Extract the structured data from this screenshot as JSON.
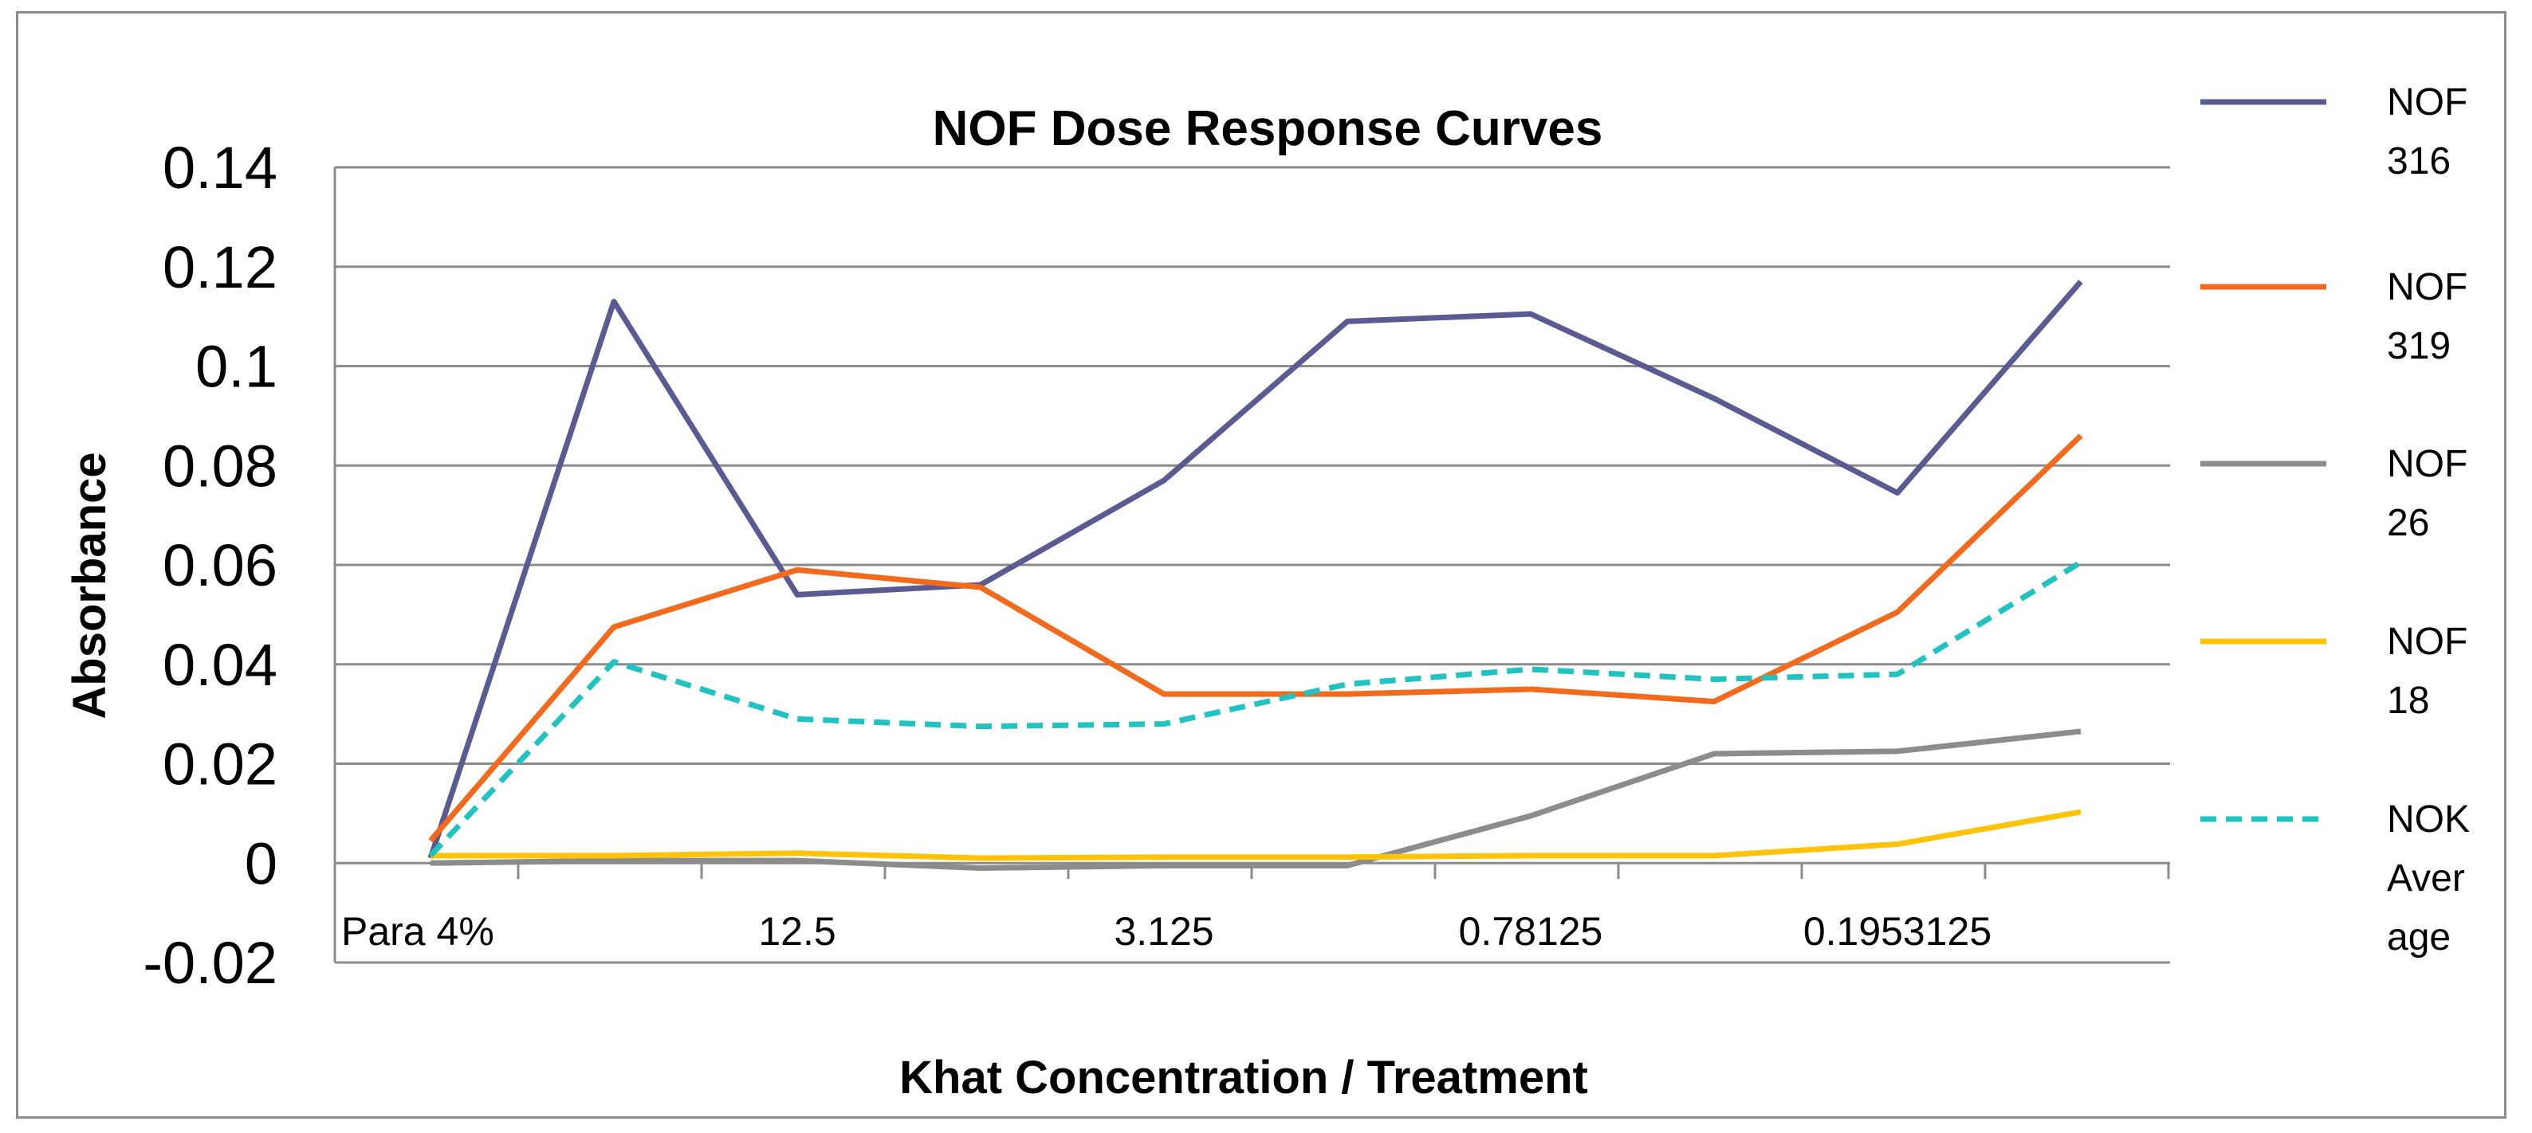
{
  "chart_data": {
    "type": "line",
    "title": "NOF Dose Response Curves",
    "xlabel": "Khat Concentration / Treatment",
    "ylabel": "Absorbance",
    "ylim": [
      -0.02,
      0.14
    ],
    "yticks": [
      "-0.02",
      "0",
      "0.02",
      "0.04",
      "0.06",
      "0.08",
      "0.1",
      "0.12",
      "0.14"
    ],
    "ytick_values": [
      -0.02,
      0,
      0.02,
      0.04,
      0.06,
      0.08,
      0.1,
      0.12,
      0.14
    ],
    "num_points": 10,
    "x_tick_labels": [
      {
        "index": 0,
        "label": "Para 4%"
      },
      {
        "index": 2,
        "label": "12.5"
      },
      {
        "index": 4,
        "label": "3.125"
      },
      {
        "index": 6,
        "label": "0.78125"
      },
      {
        "index": 8,
        "label": "0.1953125"
      }
    ],
    "grid": true,
    "legend": "right",
    "series": [
      {
        "name": "NOF 316",
        "legend_lines": [
          "NOF",
          "316"
        ],
        "color": "#5b5b94",
        "dash": false,
        "values": [
          0.001,
          0.113,
          0.054,
          0.056,
          0.077,
          0.109,
          0.1105,
          0.0935,
          0.0745,
          0.117
        ]
      },
      {
        "name": "NOF 319",
        "legend_lines": [
          "NOF",
          "319"
        ],
        "color": "#f36a1d",
        "dash": false,
        "values": [
          0.0045,
          0.0475,
          0.059,
          0.0555,
          0.034,
          0.034,
          0.035,
          0.0325,
          0.0505,
          0.086
        ]
      },
      {
        "name": "NOF 26",
        "legend_lines": [
          "NOF",
          "26"
        ],
        "color": "#8c8c8c",
        "dash": false,
        "values": [
          0.0,
          0.0005,
          0.0005,
          -0.001,
          -0.0005,
          -0.0005,
          0.0095,
          0.022,
          0.0225,
          0.0265
        ]
      },
      {
        "name": "NOF 18",
        "legend_lines": [
          "NOF",
          "18"
        ],
        "color": "#ffc30a",
        "dash": false,
        "values": [
          0.0015,
          0.0015,
          0.002,
          0.001,
          0.0012,
          0.0012,
          0.0015,
          0.0015,
          0.0038,
          0.0103
        ]
      },
      {
        "name": "NOK Average",
        "legend_lines": [
          "NOK",
          "Aver",
          "age"
        ],
        "color": "#21c2c2",
        "dash": true,
        "values": [
          0.0015,
          0.0405,
          0.029,
          0.0275,
          0.028,
          0.036,
          0.039,
          0.037,
          0.038,
          0.0605
        ]
      }
    ]
  }
}
